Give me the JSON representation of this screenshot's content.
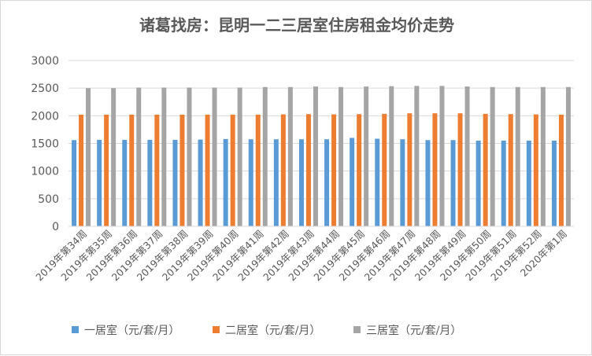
{
  "chart_data": {
    "type": "bar",
    "title": "诸葛找房：昆明一二三居室住房租金均价走势",
    "xlabel": "",
    "ylabel": "",
    "ylim": [
      0,
      3000
    ],
    "yticks": [
      0,
      500,
      1000,
      1500,
      2000,
      2500,
      3000
    ],
    "grid": true,
    "legend_position": "bottom",
    "categories": [
      "2019年第34周",
      "2019年第35周",
      "2019年第36周",
      "2019年第37周",
      "2019年第38周",
      "2019年第39周",
      "2019年第40周",
      "2019年第41周",
      "2019年第42周",
      "2019年第43周",
      "2019年第44周",
      "2019年第45周",
      "2019年第46周",
      "2019年第47周",
      "2019年第48周",
      "2019年第49周",
      "2019年第50周",
      "2019年第51周",
      "2019年第52周",
      "2020年第1周"
    ],
    "series": [
      {
        "name": "一居室（元/套/月）",
        "color": "#5b9bd5",
        "values": [
          1560,
          1565,
          1565,
          1565,
          1565,
          1570,
          1580,
          1575,
          1575,
          1575,
          1575,
          1600,
          1585,
          1575,
          1560,
          1560,
          1550,
          1550,
          1550,
          1550
        ]
      },
      {
        "name": "二居室（元/套/月）",
        "color": "#ed7d31",
        "values": [
          2020,
          2020,
          2020,
          2020,
          2020,
          2020,
          2020,
          2020,
          2025,
          2030,
          2025,
          2030,
          2035,
          2045,
          2045,
          2045,
          2035,
          2030,
          2025,
          2020
        ]
      },
      {
        "name": "三居室（元/套/月）",
        "color": "#a5a5a5",
        "values": [
          2500,
          2500,
          2510,
          2510,
          2510,
          2510,
          2510,
          2520,
          2520,
          2530,
          2520,
          2530,
          2535,
          2540,
          2540,
          2530,
          2520,
          2520,
          2520,
          2520
        ]
      }
    ]
  }
}
